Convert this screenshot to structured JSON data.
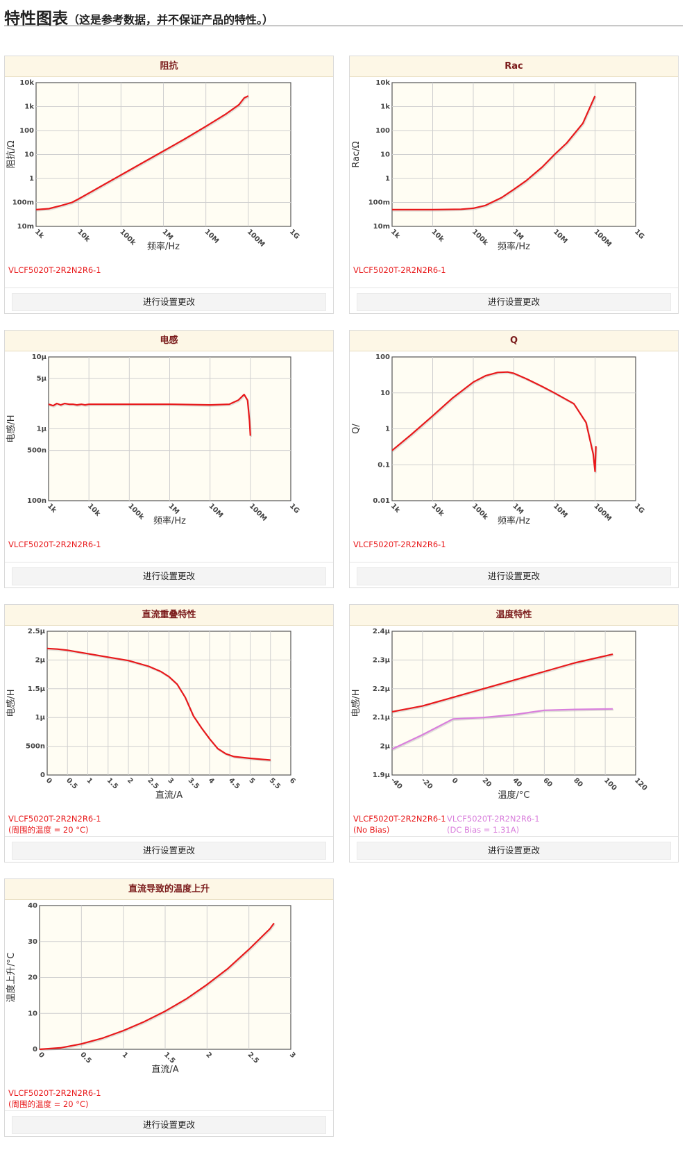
{
  "header": {
    "title": "特性图表",
    "note": "（这是参考数据，并不保证产品的特性。）"
  },
  "button_label": "进行设置更改",
  "colors": {
    "red": "#e8191b",
    "pink": "#d97fdc",
    "plot_bg": "#fffdf3",
    "grid": "#cfcfcf",
    "title_text": "#7a1a1a"
  },
  "chart_data": [
    {
      "id": "impedance",
      "type": "line",
      "title": "阻抗",
      "xlabel": "频率/Hz",
      "ylabel": "阻抗/Ω",
      "x_scale": "log",
      "y_scale": "log",
      "xlim": [
        1000,
        1000000000
      ],
      "ylim": [
        0.01,
        10000
      ],
      "x_ticks": [
        "1k",
        "10k",
        "100k",
        "1M",
        "10M",
        "100M",
        "1G"
      ],
      "y_ticks": [
        "10m",
        "100m",
        "1",
        "10",
        "100",
        "1k",
        "10k"
      ],
      "series": [
        {
          "name": "VLCF5020T-2R2N2R6-1",
          "color": "#e8191b",
          "x": [
            1000,
            2000,
            4000,
            7000,
            10000,
            30000,
            100000,
            300000,
            1000000,
            3000000,
            10000000,
            30000000,
            60000000,
            80000000,
            100000000
          ],
          "y": [
            0.05,
            0.055,
            0.075,
            0.1,
            0.14,
            0.42,
            1.4,
            4.2,
            14,
            42,
            150,
            500,
            1200,
            2300,
            2800
          ]
        }
      ],
      "captions": [
        "VLCF5020T-2R2N2R6-1"
      ]
    },
    {
      "id": "rac",
      "type": "line",
      "title": "Rac",
      "xlabel": "频率/Hz",
      "ylabel": "Rac/Ω",
      "x_scale": "log",
      "y_scale": "log",
      "xlim": [
        1000,
        1000000000
      ],
      "ylim": [
        0.01,
        10000
      ],
      "x_ticks": [
        "1k",
        "10k",
        "100k",
        "1M",
        "10M",
        "100M",
        "1G"
      ],
      "y_ticks": [
        "10m",
        "100m",
        "1",
        "10",
        "100",
        "1k",
        "10k"
      ],
      "series": [
        {
          "name": "VLCF5020T-2R2N2R6-1",
          "color": "#e8191b",
          "x": [
            1000,
            10000,
            50000,
            100000,
            200000,
            500000,
            1000000,
            2000000,
            5000000,
            10000000,
            20000000,
            50000000,
            80000000,
            100000000
          ],
          "y": [
            0.05,
            0.05,
            0.052,
            0.057,
            0.075,
            0.16,
            0.35,
            0.8,
            3,
            10,
            30,
            200,
            1200,
            2800
          ]
        }
      ],
      "captions": [
        "VLCF5020T-2R2N2R6-1"
      ]
    },
    {
      "id": "inductance",
      "type": "line",
      "title": "电感",
      "xlabel": "频率/Hz",
      "ylabel": "电感/H",
      "x_scale": "log",
      "y_scale": "log",
      "xlim": [
        1000,
        1000000000
      ],
      "ylim": [
        1e-07,
        1e-05
      ],
      "x_ticks": [
        "1k",
        "10k",
        "100k",
        "1M",
        "10M",
        "100M",
        "1G"
      ],
      "y_ticks": [
        "100n",
        "500n",
        "1μ",
        "5μ",
        "10μ"
      ],
      "series": [
        {
          "name": "VLCF5020T-2R2N2R6-1",
          "color": "#e8191b",
          "x": [
            1000,
            1300,
            1600,
            2000,
            2500,
            3200,
            4000,
            5000,
            6500,
            8000,
            10000,
            100000,
            1000000,
            10000000,
            30000000,
            50000000,
            70000000,
            85000000,
            95000000,
            100000000
          ],
          "y": [
            2.2e-06,
            2.1e-06,
            2.25e-06,
            2.15e-06,
            2.25e-06,
            2.2e-06,
            2.2e-06,
            2.15e-06,
            2.2e-06,
            2.15e-06,
            2.2e-06,
            2.2e-06,
            2.2e-06,
            2.15e-06,
            2.2e-06,
            2.5e-06,
            3e-06,
            2.5e-06,
            1.3e-06,
            8e-07
          ]
        }
      ],
      "captions": [
        "VLCF5020T-2R2N2R6-1"
      ]
    },
    {
      "id": "q",
      "type": "line",
      "title": "Q",
      "xlabel": "频率/Hz",
      "ylabel": "Q/",
      "x_scale": "log",
      "y_scale": "log",
      "xlim": [
        1000,
        1000000000
      ],
      "ylim": [
        0.01,
        100
      ],
      "x_ticks": [
        "1k",
        "10k",
        "100k",
        "1M",
        "10M",
        "100M",
        "1G"
      ],
      "y_ticks": [
        "0.01",
        "0.1",
        "1",
        "10",
        "100"
      ],
      "series": [
        {
          "name": "VLCF5020T-2R2N2R6-1",
          "color": "#e8191b",
          "x": [
            1000,
            3000,
            10000,
            30000,
            100000,
            200000,
            400000,
            700000,
            1000000,
            2000000,
            5000000,
            10000000,
            30000000,
            60000000,
            90000000,
            100000000,
            105000000
          ],
          "y": [
            0.25,
            0.7,
            2.3,
            7,
            20,
            30,
            37,
            38,
            35,
            25,
            15,
            10,
            5,
            1.5,
            0.2,
            0.065,
            0.33
          ]
        }
      ],
      "captions": [
        "VLCF5020T-2R2N2R6-1"
      ]
    },
    {
      "id": "dc-bias",
      "type": "line",
      "title": "直流重叠特性",
      "xlabel": "直流/A",
      "ylabel": "电感/H",
      "xlim": [
        0,
        6
      ],
      "ylim": [
        0,
        2.5e-06
      ],
      "x_ticks": [
        "0",
        "0.5",
        "1",
        "1.5",
        "2",
        "2.5",
        "3",
        "3.5",
        "4",
        "4.5",
        "5",
        "5.5",
        "6"
      ],
      "y_ticks": [
        "0",
        "500n",
        "1μ",
        "1.5μ",
        "2μ",
        "2.5μ"
      ],
      "series": [
        {
          "name": "VLCF5020T-2R2N2R6-1(周围的温度 = 20 °C)",
          "color": "#e8191b",
          "x": [
            0,
            0.25,
            0.5,
            1,
            1.5,
            2,
            2.5,
            2.8,
            3.0,
            3.2,
            3.4,
            3.6,
            3.8,
            4.0,
            4.2,
            4.4,
            4.6,
            5.0,
            5.5
          ],
          "y": [
            2.2e-06,
            2.19e-06,
            2.17e-06,
            2.11e-06,
            2.05e-06,
            1.99e-06,
            1.89e-06,
            1.8e-06,
            1.71e-06,
            1.58e-06,
            1.35e-06,
            1.03e-06,
            8.2e-07,
            6.3e-07,
            4.6e-07,
            3.7e-07,
            3.2e-07,
            2.9e-07,
            2.6e-07
          ]
        }
      ],
      "captions": [
        "VLCF5020T-2R2N2R6-1(周围的温度 = 20 °C)"
      ]
    },
    {
      "id": "temperature",
      "type": "line",
      "title": "温度特性",
      "xlabel": "温度/°C",
      "ylabel": "电感/H",
      "xlim": [
        -40,
        120
      ],
      "ylim": [
        1.9e-06,
        2.4e-06
      ],
      "x_ticks": [
        "-40",
        "-20",
        "0",
        "20",
        "40",
        "60",
        "80",
        "100",
        "120"
      ],
      "y_ticks": [
        "1.9μ",
        "2μ",
        "2.1μ",
        "2.2μ",
        "2.3μ",
        "2.4μ"
      ],
      "series": [
        {
          "name": "VLCF5020T-2R2N2R6-1 (No Bias)",
          "color": "#e8191b",
          "x": [
            -40,
            -20,
            0,
            20,
            40,
            60,
            80,
            105
          ],
          "y": [
            2.12e-06,
            2.14e-06,
            2.17e-06,
            2.2e-06,
            2.23e-06,
            2.26e-06,
            2.29e-06,
            2.32e-06
          ]
        },
        {
          "name": "VLCF5020T-2R2N2R6-1(DC Bias = 1.31A)",
          "color": "#d97fdc",
          "x": [
            -40,
            -20,
            0,
            20,
            40,
            60,
            80,
            105
          ],
          "y": [
            1.99e-06,
            2.04e-06,
            2.095e-06,
            2.1e-06,
            2.11e-06,
            2.125e-06,
            2.128e-06,
            2.13e-06
          ]
        }
      ],
      "captions": [
        "VLCF5020T-2R2N2R6-1 (No Bias)",
        "VLCF5020T-2R2N2R6-1(DC Bias = 1.31A)"
      ]
    },
    {
      "id": "temp-rise",
      "type": "line",
      "title": "直流导致的温度上升",
      "xlabel": "直流/A",
      "ylabel": "温度上升/°C",
      "xlim": [
        0,
        3
      ],
      "ylim": [
        0,
        40
      ],
      "x_ticks": [
        "0",
        "0.5",
        "1",
        "1.5",
        "2",
        "2.5",
        "3"
      ],
      "y_ticks": [
        "0",
        "10",
        "20",
        "30",
        "40"
      ],
      "series": [
        {
          "name": "VLCF5020T-2R2N2R6-1(周围的温度 = 20 °C)",
          "color": "#e8191b",
          "x": [
            0,
            0.25,
            0.5,
            0.75,
            1,
            1.25,
            1.5,
            1.75,
            2,
            2.25,
            2.5,
            2.75,
            2.8
          ],
          "y": [
            0,
            0.4,
            1.5,
            3.1,
            5.2,
            7.7,
            10.6,
            14,
            18,
            22.5,
            27.8,
            33.5,
            35.1
          ]
        }
      ],
      "captions": [
        "VLCF5020T-2R2N2R6-1(周围的温度 = 20 °C)"
      ]
    }
  ]
}
